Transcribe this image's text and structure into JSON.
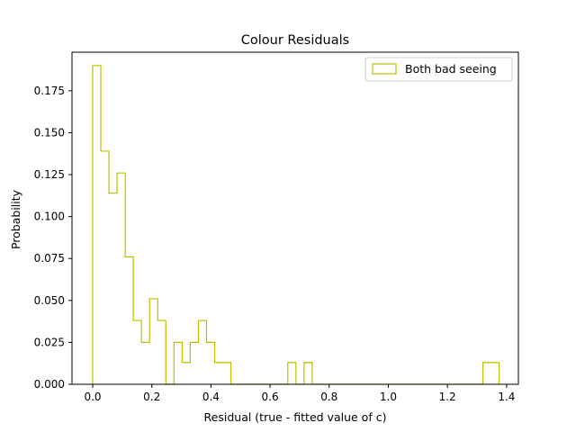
{
  "chart_data": {
    "type": "histogram",
    "title": "Colour Residuals",
    "xlabel": "Residual (true - fitted value of c)",
    "ylabel": "Probability",
    "xlim": [
      -0.07,
      1.44
    ],
    "ylim": [
      0.0,
      0.198
    ],
    "xticks": [
      0.0,
      0.2,
      0.4,
      0.6,
      0.8,
      1.0,
      1.2,
      1.4
    ],
    "xtick_labels": [
      "0.0",
      "0.2",
      "0.4",
      "0.6",
      "0.8",
      "1.0",
      "1.2",
      "1.4"
    ],
    "yticks": [
      0.0,
      0.025,
      0.05,
      0.075,
      0.1,
      0.125,
      0.15,
      0.175
    ],
    "ytick_labels": [
      "0.000",
      "0.025",
      "0.050",
      "0.075",
      "0.100",
      "0.125",
      "0.150",
      "0.175"
    ],
    "grid": false,
    "legend_position": "top-right",
    "histtype": "step",
    "bin_edges": [
      0.0,
      0.0275,
      0.055,
      0.0825,
      0.11,
      0.1375,
      0.165,
      0.1925,
      0.22,
      0.2475,
      0.275,
      0.3025,
      0.33,
      0.3575,
      0.385,
      0.4125,
      0.44,
      0.4675,
      0.495,
      0.5225,
      0.55,
      0.5775,
      0.605,
      0.6325,
      0.66,
      0.6875,
      0.715,
      0.7425,
      0.77,
      0.7975,
      0.825,
      0.8525,
      0.88,
      0.9075,
      0.935,
      0.9625,
      0.99,
      1.0175,
      1.045,
      1.0725,
      1.1,
      1.1275,
      1.155,
      1.1825,
      1.21,
      1.2375,
      1.265,
      1.2925,
      1.32,
      1.3475,
      1.375
    ],
    "series": [
      {
        "name": "Both bad seeing",
        "color": "#bfbf00",
        "values": [
          0.19,
          0.139,
          0.114,
          0.126,
          0.076,
          0.038,
          0.025,
          0.051,
          0.038,
          0.0,
          0.025,
          0.013,
          0.025,
          0.038,
          0.025,
          0.013,
          0.013,
          0.0,
          0.0,
          0.0,
          0.0,
          0.0,
          0.0,
          0.0,
          0.013,
          0.0,
          0.013,
          0.0,
          0.0,
          0.0,
          0.0,
          0.0,
          0.0,
          0.0,
          0.0,
          0.0,
          0.0,
          0.0,
          0.0,
          0.0,
          0.0,
          0.0,
          0.0,
          0.0,
          0.0,
          0.0,
          0.0,
          0.0,
          0.013,
          0.013
        ]
      }
    ]
  }
}
